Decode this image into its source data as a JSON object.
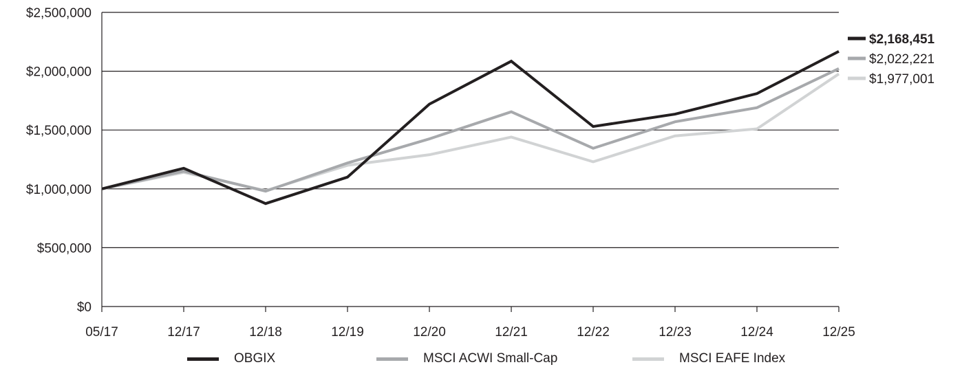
{
  "chart_data": {
    "type": "line",
    "categories": [
      "05/17",
      "12/17",
      "12/18",
      "12/19",
      "12/20",
      "12/21",
      "12/22",
      "12/23",
      "12/24",
      "12/25"
    ],
    "ylim": [
      0,
      2500000
    ],
    "yticks": [
      0,
      500000,
      1000000,
      1500000,
      2000000,
      2500000
    ],
    "ytick_labels": [
      "$0",
      "$500,000",
      "$1,000,000",
      "$1,500,000",
      "$2,000,000",
      "$2,500,000"
    ],
    "grid": "horizontal",
    "legend_position": "bottom",
    "series": [
      {
        "name": "OBGIX",
        "color": "#231f20",
        "bold_label": true,
        "values": [
          1000000,
          1175000,
          875000,
          1100000,
          1720000,
          2085000,
          1530000,
          1635000,
          1810000,
          2168451
        ],
        "end_label": "$2,168,451"
      },
      {
        "name": "MSCI ACWI Small-Cap",
        "color": "#a7a9ac",
        "bold_label": false,
        "values": [
          1000000,
          1150000,
          980000,
          1220000,
          1425000,
          1655000,
          1345000,
          1570000,
          1690000,
          2022221
        ],
        "end_label": "$2,022,221"
      },
      {
        "name": "MSCI EAFE Index",
        "color": "#d1d3d4",
        "bold_label": false,
        "values": [
          1000000,
          1140000,
          985000,
          1200000,
          1290000,
          1440000,
          1230000,
          1450000,
          1510000,
          1977001
        ],
        "end_label": "$1,977,001"
      }
    ]
  }
}
